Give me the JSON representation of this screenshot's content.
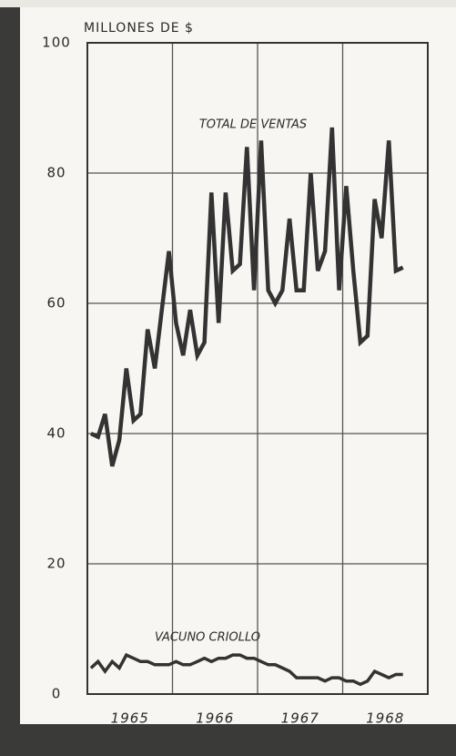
{
  "chart_data": {
    "type": "line",
    "y_axis_label": "MILLONES DE $",
    "x": [
      1965.042,
      1965.125,
      1965.208,
      1965.292,
      1965.375,
      1965.458,
      1965.542,
      1965.625,
      1965.708,
      1965.792,
      1965.875,
      1965.958,
      1966.042,
      1966.125,
      1966.208,
      1966.292,
      1966.375,
      1966.458,
      1966.542,
      1966.625,
      1966.708,
      1966.792,
      1966.875,
      1966.958,
      1967.042,
      1967.125,
      1967.208,
      1967.292,
      1967.375,
      1967.458,
      1967.542,
      1967.625,
      1967.708,
      1967.792,
      1967.875,
      1967.958,
      1968.042,
      1968.125,
      1968.208,
      1968.292,
      1968.375,
      1968.458,
      1968.542,
      1968.625,
      1968.708
    ],
    "series": [
      {
        "name": "TOTAL DE VENTAS",
        "color": "#333333",
        "values": [
          40,
          39.5,
          43,
          35,
          39,
          50,
          42,
          43,
          56,
          50,
          59,
          68,
          57,
          52,
          59,
          52,
          54,
          77,
          57,
          77,
          65,
          66,
          84,
          62,
          85,
          62,
          60,
          62,
          73,
          62,
          62,
          80,
          65,
          68,
          87,
          62,
          78,
          65,
          54,
          55,
          76,
          70,
          85,
          65,
          65.5
        ]
      },
      {
        "name": "VACUNO CRIOLLO",
        "color": "#333333",
        "values": [
          4,
          5,
          3.5,
          5,
          4,
          6,
          5.5,
          5,
          5,
          4.5,
          4.5,
          4.5,
          5,
          4.5,
          4.5,
          5,
          5.5,
          5,
          5.5,
          5.5,
          6,
          6,
          5.5,
          5.5,
          5,
          4.5,
          4.5,
          4,
          3.5,
          2.5,
          2.5,
          2.5,
          2.5,
          2,
          2.5,
          2.5,
          2,
          2,
          1.5,
          2,
          3.5,
          3,
          2.5,
          3,
          3
        ]
      }
    ],
    "xlim": [
      1965,
      1969
    ],
    "xticks": [
      {
        "value": 1965.5,
        "label": "1965"
      },
      {
        "value": 1966.5,
        "label": "1966"
      },
      {
        "value": 1967.5,
        "label": "1967"
      },
      {
        "value": 1968.5,
        "label": "1968"
      }
    ],
    "ylim": [
      0,
      100
    ],
    "yticks": [
      0,
      20,
      40,
      60,
      80,
      100
    ],
    "grid": true
  }
}
